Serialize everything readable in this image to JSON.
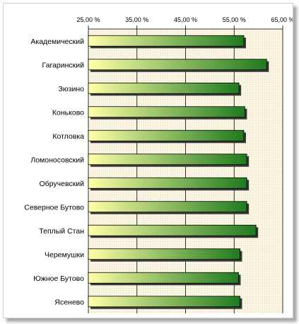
{
  "chart_data": {
    "type": "bar",
    "orientation": "horizontal",
    "title": "",
    "xlabel": "",
    "ylabel": "",
    "xlim": [
      25,
      65
    ],
    "ticks": [
      25,
      35,
      45,
      55,
      65
    ],
    "tick_labels": [
      "25,00 %",
      "35,00 %",
      "45,00 %",
      "55,00 %",
      "65,00 %"
    ],
    "grid": true,
    "legend": "none",
    "categories": [
      "Академический",
      "Гагаринский",
      "Зюзино",
      "Коньково",
      "Котловка",
      "Ломоносовский",
      "Обручевский",
      "Северное Бутово",
      "Теплый Стан",
      "Черемушки",
      "Южное Бутово",
      "Ясенево"
    ],
    "values": [
      57.0,
      61.7,
      56.0,
      57.2,
      57.0,
      57.6,
      57.6,
      57.6,
      59.5,
      56.2,
      55.9,
      56.2
    ],
    "colors": {
      "bar_start": "#ffffa8",
      "bar_end": "#1f7a1f",
      "bar_outline": "#000000",
      "plot_background": "#fbf6e4",
      "gridline": "#000000"
    }
  }
}
